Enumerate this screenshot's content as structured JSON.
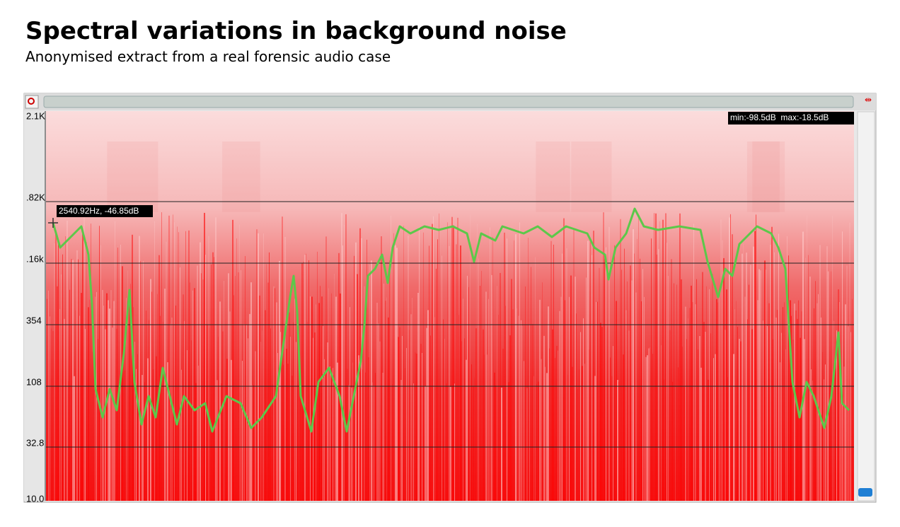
{
  "header": {
    "title": "Spectral variations in background noise",
    "subtitle": "Anonymised extract from a real forensic audio case"
  },
  "spectrogram": {
    "y_labels": [
      "2.1K",
      ".82K",
      ".16k",
      "354",
      "108",
      "32.8",
      "10.0"
    ],
    "cursor_readout": "2540.92Hz, -46.85dB",
    "range_readout": "min:-98.5dB  max:-18.5dB"
  }
}
